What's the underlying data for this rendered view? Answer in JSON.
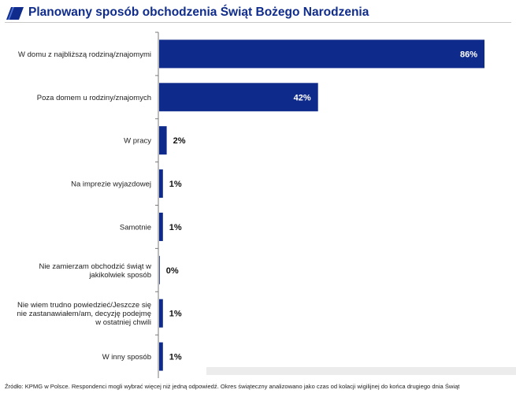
{
  "title": "Planowany sposób obchodzenia Świąt Bożego Narodzenia",
  "source_note": "Źródło: KPMG w Polsce. Respondenci mogli wybrać więcej niż jedną odpowiedź. Okres świąteczny analizowano jako czas od kolacji wigilijnej do końca drugiego dnia Świąt",
  "colors": {
    "bar": "#0e2a8a",
    "title": "#0f2c8c",
    "axis": "#7a7a7a"
  },
  "chart_data": {
    "type": "bar",
    "orientation": "horizontal",
    "title": "Planowany sposób obchodzenia Świąt Bożego Narodzenia",
    "categories": [
      [
        "W domu z najbliższą rodziną/znajomymi"
      ],
      [
        "Poza domem u rodziny/znajomych"
      ],
      [
        "W pracy"
      ],
      [
        "Na imprezie wyjazdowej"
      ],
      [
        "Samotnie"
      ],
      [
        "Nie zamierzam obchodzić świąt w",
        "jakikolwiek sposób"
      ],
      [
        "Nie wiem trudno powiedzieć/Jeszcze się",
        "nie zastanawiałem/am, decyzję podejmę",
        "w ostatniej chwili"
      ],
      [
        "W inny sposób"
      ]
    ],
    "values": [
      86,
      42,
      2,
      1,
      1,
      0,
      1,
      1
    ],
    "labels": [
      "86%",
      "42%",
      "2%",
      "1%",
      "1%",
      "0%",
      "1%",
      "1%"
    ],
    "unit": "%",
    "xlim": [
      0,
      100
    ]
  }
}
